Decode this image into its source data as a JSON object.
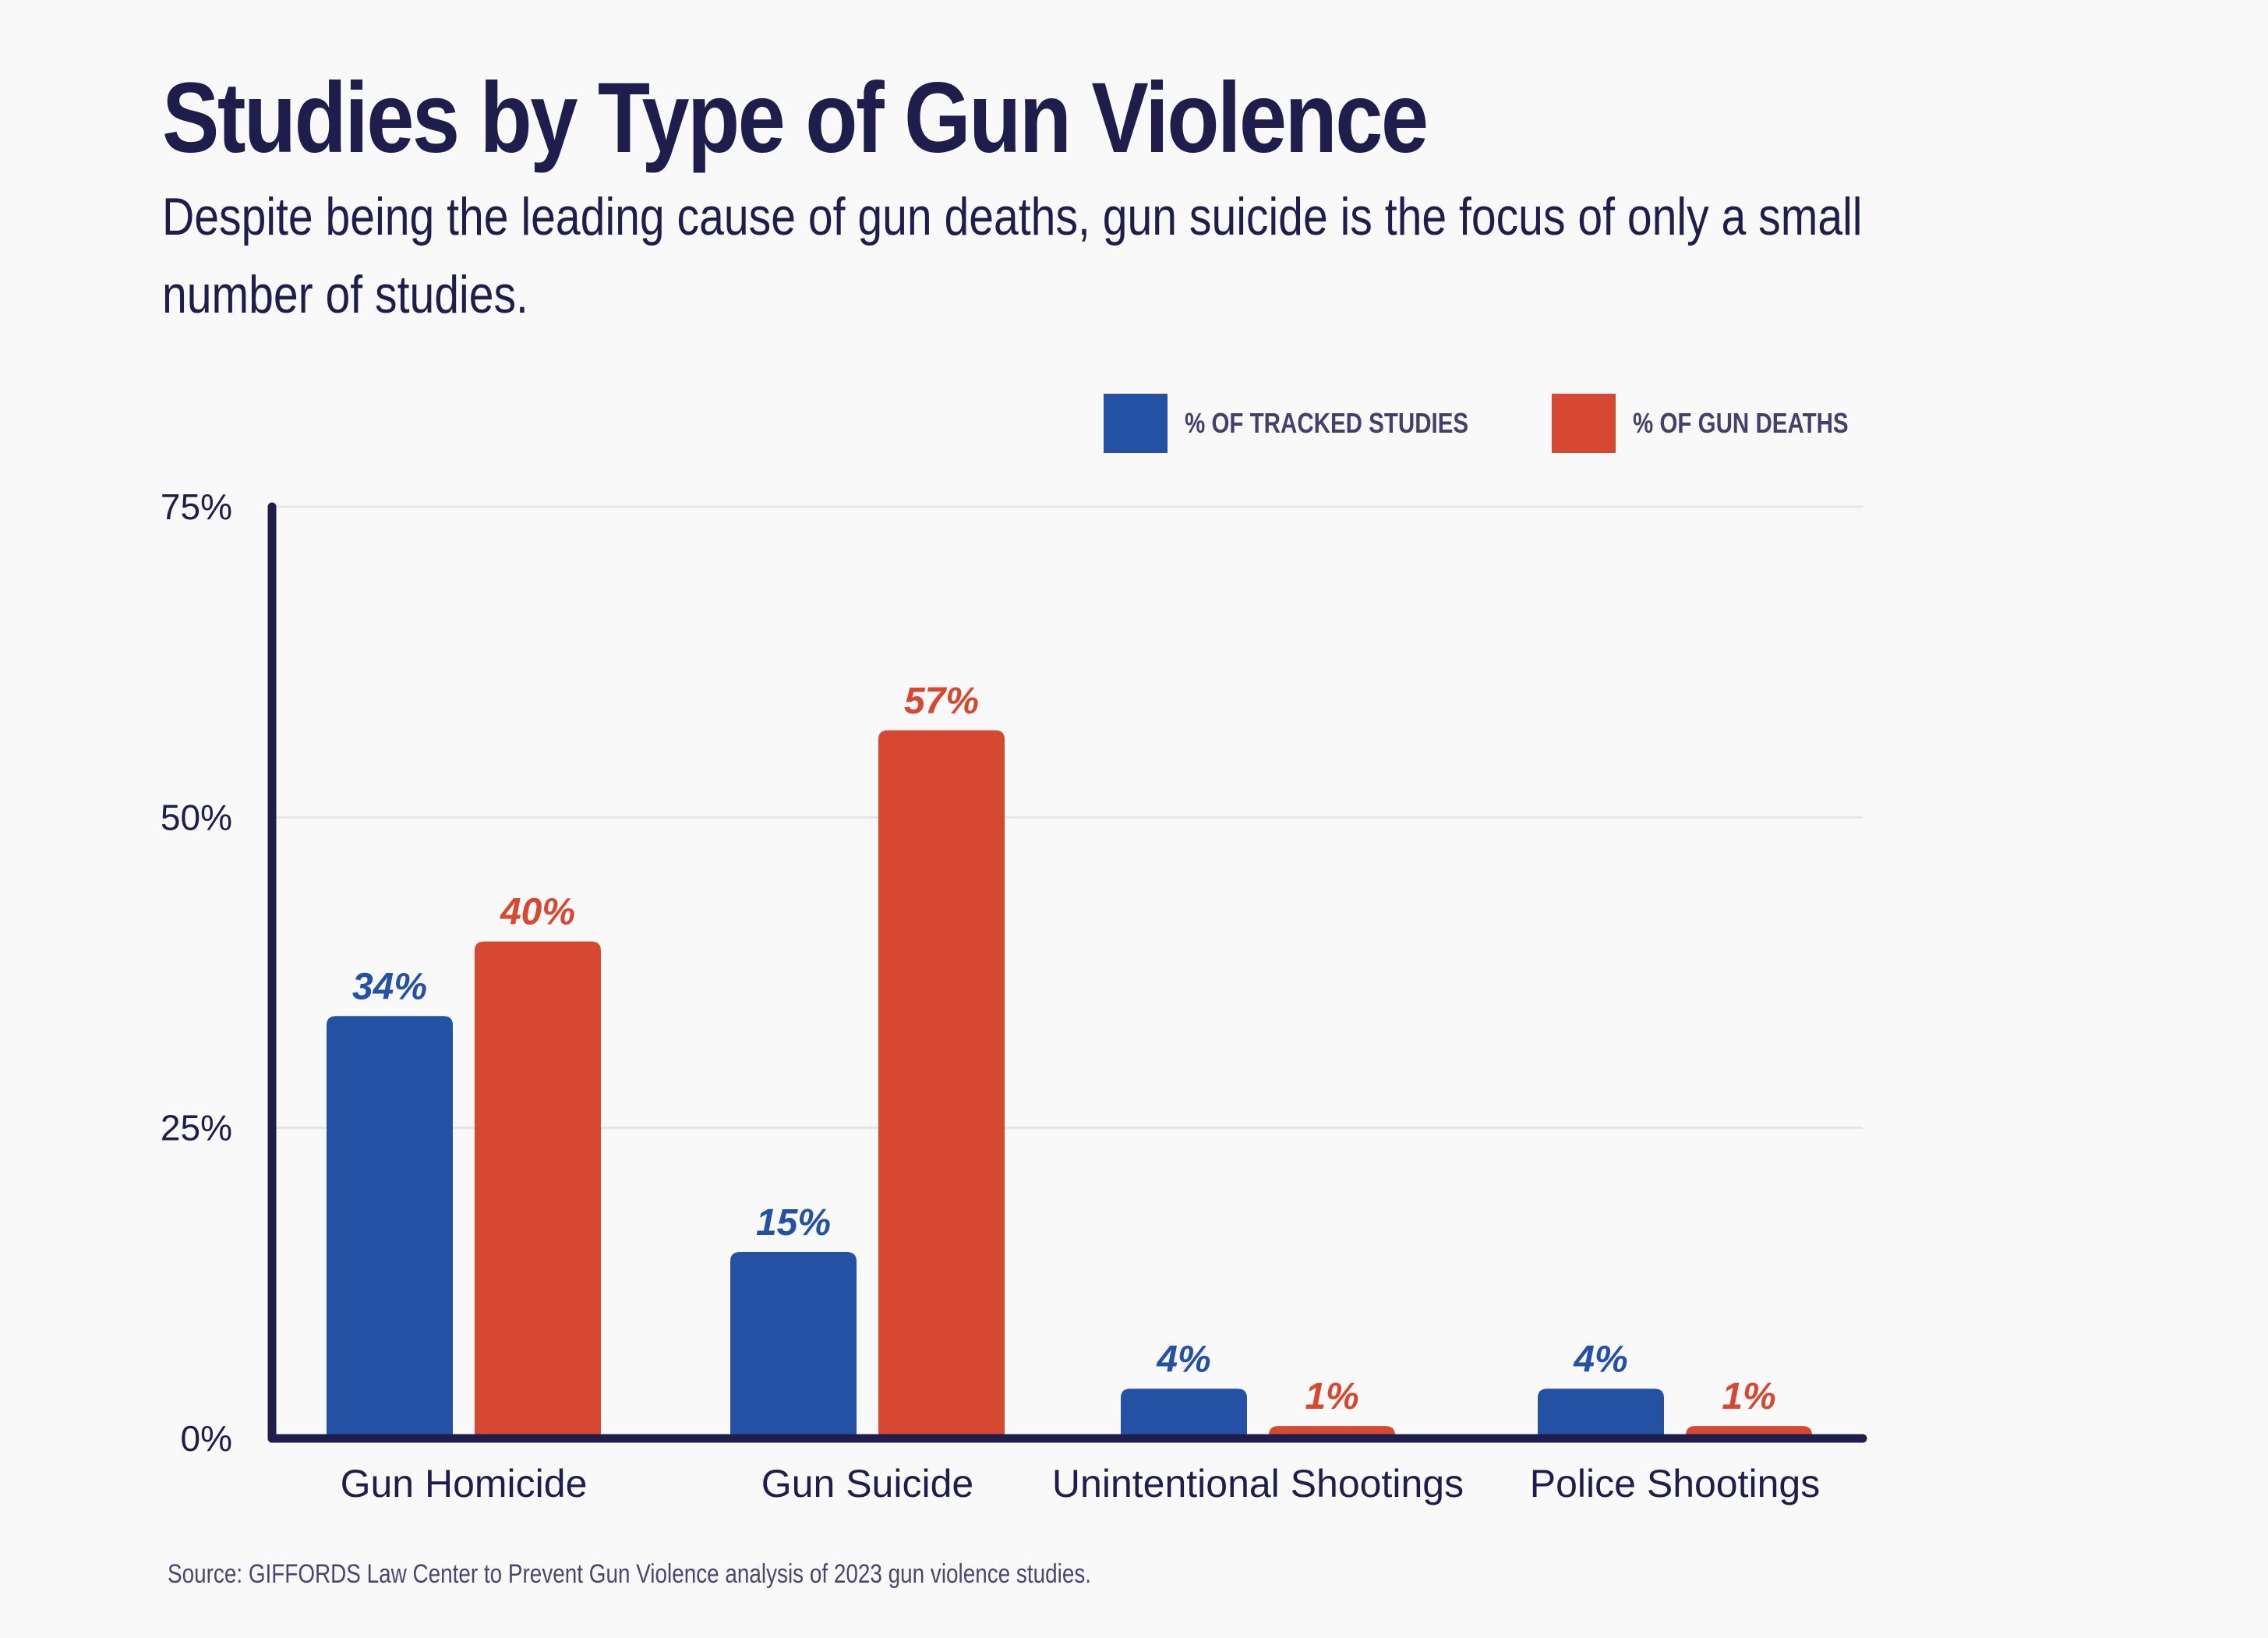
{
  "title": "Studies by Type of Gun Violence",
  "subtitle": "Despite being the leading cause of gun deaths, gun suicide is the focus of only a small number of studies.",
  "legend": {
    "items": [
      {
        "label": "% OF TRACKED STUDIES",
        "color": "#2451a3"
      },
      {
        "label": "% OF GUN DEATHS",
        "color": "#d64832"
      }
    ]
  },
  "source": "Source: GIFFORDS Law Center to Prevent Gun Violence analysis of 2023 gun violence studies.",
  "chart_data": {
    "type": "bar",
    "title": "Studies by Type of Gun Violence",
    "xlabel": "",
    "ylabel": "",
    "categories": [
      "Gun Homicide",
      "Gun Suicide",
      "Unintentional Shootings",
      "Police Shootings"
    ],
    "series": [
      {
        "name": "% OF TRACKED STUDIES",
        "color": "#2451a3",
        "values": [
          34,
          15,
          4,
          4
        ],
        "labels": [
          "34%",
          "15%",
          "4%",
          "4%"
        ]
      },
      {
        "name": "% OF GUN DEATHS",
        "color": "#d64832",
        "values": [
          40,
          57,
          1,
          1
        ],
        "labels": [
          "40%",
          "57%",
          "1%",
          "1%"
        ]
      }
    ],
    "ylim": [
      0,
      75
    ],
    "yticks": [
      0,
      25,
      50,
      75
    ],
    "ytick_labels": [
      "0%",
      "25%",
      "50%",
      "75%"
    ],
    "grid": true,
    "legend_position": "top-right",
    "axis_color": "#1e1d4c",
    "grid_color": "#e6e6e6"
  }
}
